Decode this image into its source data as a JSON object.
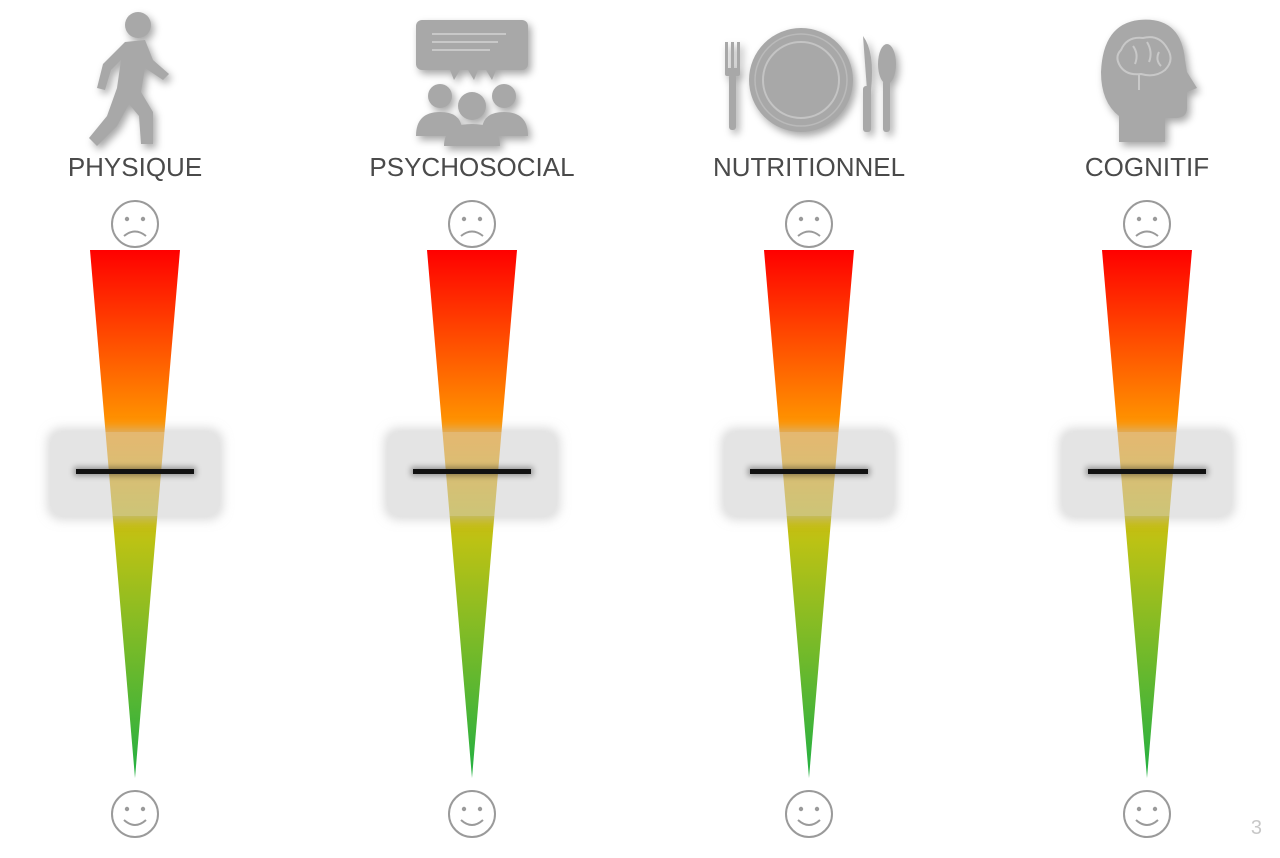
{
  "domains": [
    {
      "id": "physique",
      "label": "PHYSIQUE",
      "icon": "walking-person-icon"
    },
    {
      "id": "psychosocial",
      "label": "PSYCHOSOCIAL",
      "icon": "group-discussion-icon"
    },
    {
      "id": "nutritionnel",
      "label": "NUTRITIONNEL",
      "icon": "plate-cutlery-icon"
    },
    {
      "id": "cognitif",
      "label": "COGNITIF",
      "icon": "head-brain-icon"
    }
  ],
  "scale": {
    "top_icon": "sad-face-icon",
    "bottom_icon": "happy-face-icon",
    "gradient_colors": [
      "#ff0000",
      "#ff9e00",
      "#bcc214",
      "#22b042"
    ],
    "marker_level_fraction_from_top": 0.42
  },
  "page_number": "3",
  "colors": {
    "icon_gray": "#a8a8a8",
    "label_text": "#4a4a4a"
  }
}
